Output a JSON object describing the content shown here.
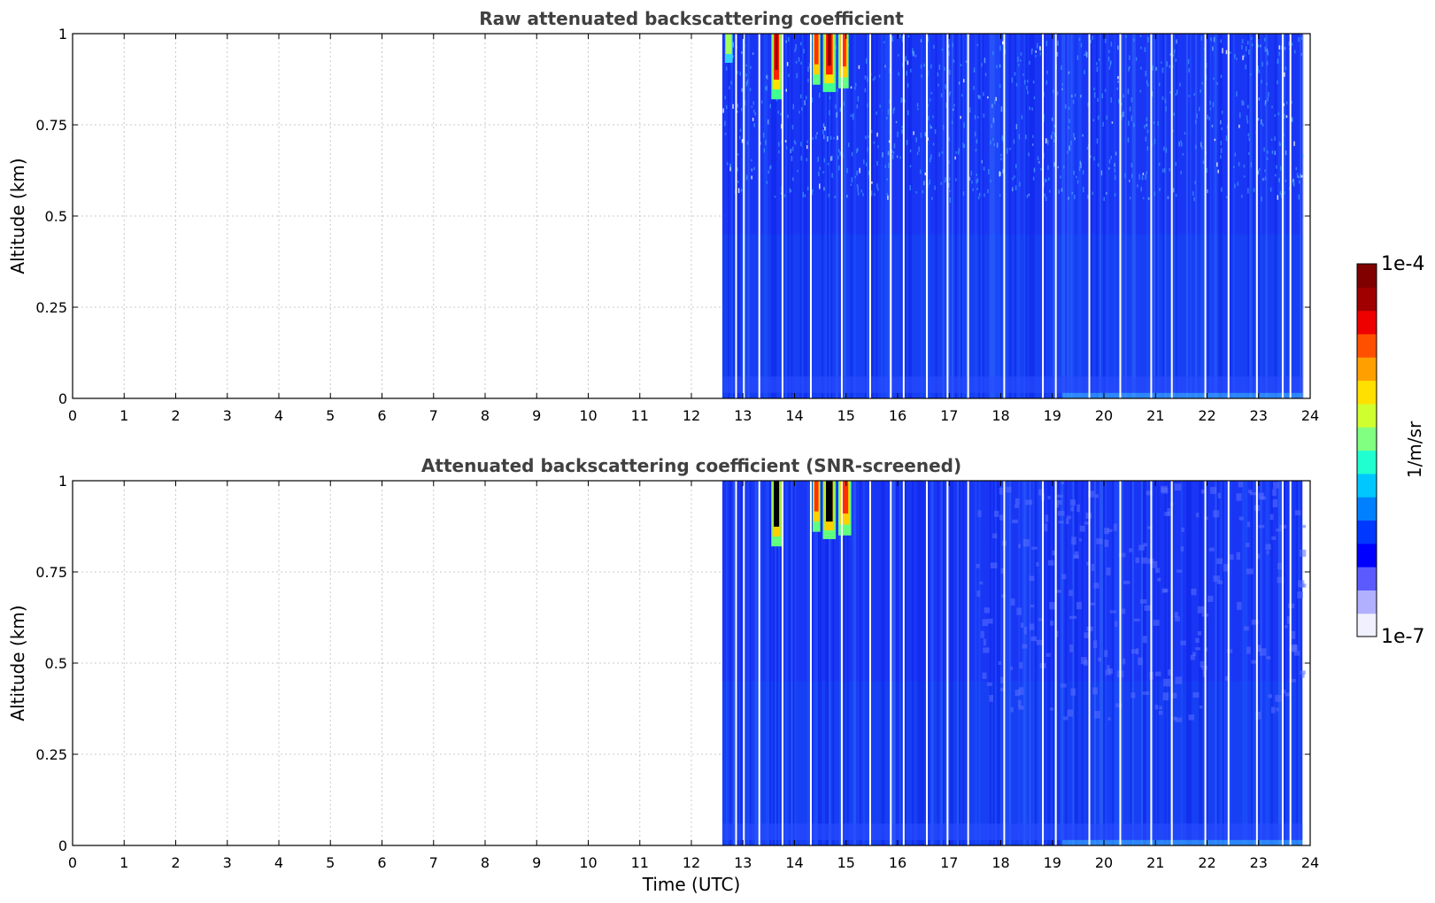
{
  "chart_data": [
    {
      "type": "heatmap",
      "title": "Raw attenuated backscattering coefficient",
      "xlabel": "",
      "ylabel": "Altitude (km)",
      "xlim": [
        0,
        24
      ],
      "ylim": [
        0,
        1
      ],
      "x_ticks": [
        "0",
        "1",
        "2",
        "3",
        "4",
        "5",
        "6",
        "7",
        "8",
        "9",
        "10",
        "11",
        "12",
        "13",
        "14",
        "15",
        "16",
        "17",
        "18",
        "19",
        "20",
        "21",
        "22",
        "23",
        "24"
      ],
      "y_ticks": [
        "0",
        "0.25",
        "0.5",
        "0.75",
        "1"
      ],
      "grid": true,
      "data_start_time": 12.6,
      "data_end_time": 23.85,
      "gap_times": [
        12.85,
        13.0,
        13.3,
        13.75,
        14.3,
        14.9,
        15.45,
        15.85,
        16.1,
        16.55,
        16.95,
        17.35,
        18.05,
        18.8,
        19.05,
        19.7,
        20.3,
        20.9,
        21.3,
        21.95,
        22.4,
        22.95,
        23.45,
        23.6
      ],
      "cloud_events": [
        {
          "t_start": 13.55,
          "t_end": 13.75,
          "alt_bottom": 0.82,
          "level": "high"
        },
        {
          "t_start": 14.35,
          "t_end": 14.5,
          "alt_bottom": 0.86,
          "level": "medium"
        },
        {
          "t_start": 14.55,
          "t_end": 14.8,
          "alt_bottom": 0.84,
          "level": "high"
        },
        {
          "t_start": 14.85,
          "t_end": 15.05,
          "alt_bottom": 0.85,
          "level": "medium"
        },
        {
          "t_start": 12.65,
          "t_end": 12.8,
          "alt_bottom": 0.92,
          "level": "low"
        }
      ]
    },
    {
      "type": "heatmap",
      "title": "Attenuated backscattering coefficient (SNR-screened)",
      "xlabel": "Time (UTC)",
      "ylabel": "Altitude (km)",
      "xlim": [
        0,
        24
      ],
      "ylim": [
        0,
        1
      ],
      "x_ticks": [
        "0",
        "1",
        "2",
        "3",
        "4",
        "5",
        "6",
        "7",
        "8",
        "9",
        "10",
        "11",
        "12",
        "13",
        "14",
        "15",
        "16",
        "17",
        "18",
        "19",
        "20",
        "21",
        "22",
        "23",
        "24"
      ],
      "y_ticks": [
        "0",
        "0.25",
        "0.5",
        "0.75",
        "1"
      ],
      "grid": true,
      "data_start_time": 12.6,
      "data_end_time": 23.85,
      "gap_times": [
        12.85,
        13.0,
        13.3,
        13.75,
        14.3,
        14.9,
        15.45,
        15.85,
        16.1,
        16.55,
        16.95,
        17.35,
        18.05,
        18.8,
        19.05,
        19.7,
        20.3,
        20.9,
        21.3,
        21.95,
        22.4,
        22.95,
        23.45,
        23.6
      ],
      "cloud_events": [
        {
          "t_start": 13.55,
          "t_end": 13.75,
          "alt_bottom": 0.82,
          "level": "saturated"
        },
        {
          "t_start": 14.35,
          "t_end": 14.5,
          "alt_bottom": 0.86,
          "level": "medium"
        },
        {
          "t_start": 14.55,
          "t_end": 14.8,
          "alt_bottom": 0.84,
          "level": "saturated"
        },
        {
          "t_start": 14.85,
          "t_end": 15.1,
          "alt_bottom": 0.85,
          "level": "medium"
        }
      ]
    }
  ],
  "colorbar": {
    "label": "1/m/sr",
    "max_label": "1e-4",
    "min_label": "1e-7",
    "scale": "log",
    "colormap": [
      "#f0f0ff",
      "#b0b0ff",
      "#5a5aff",
      "#0000ff",
      "#0038ff",
      "#0080ff",
      "#00c8ff",
      "#20ffd0",
      "#80ff80",
      "#d0ff30",
      "#ffe000",
      "#ffa000",
      "#ff5000",
      "#ee0000",
      "#a00000",
      "#800000"
    ]
  },
  "colors": {
    "background_fill": "#1a36f5",
    "axis": "#000000",
    "title_text": "#404040",
    "grid": "#c8c8c8"
  }
}
